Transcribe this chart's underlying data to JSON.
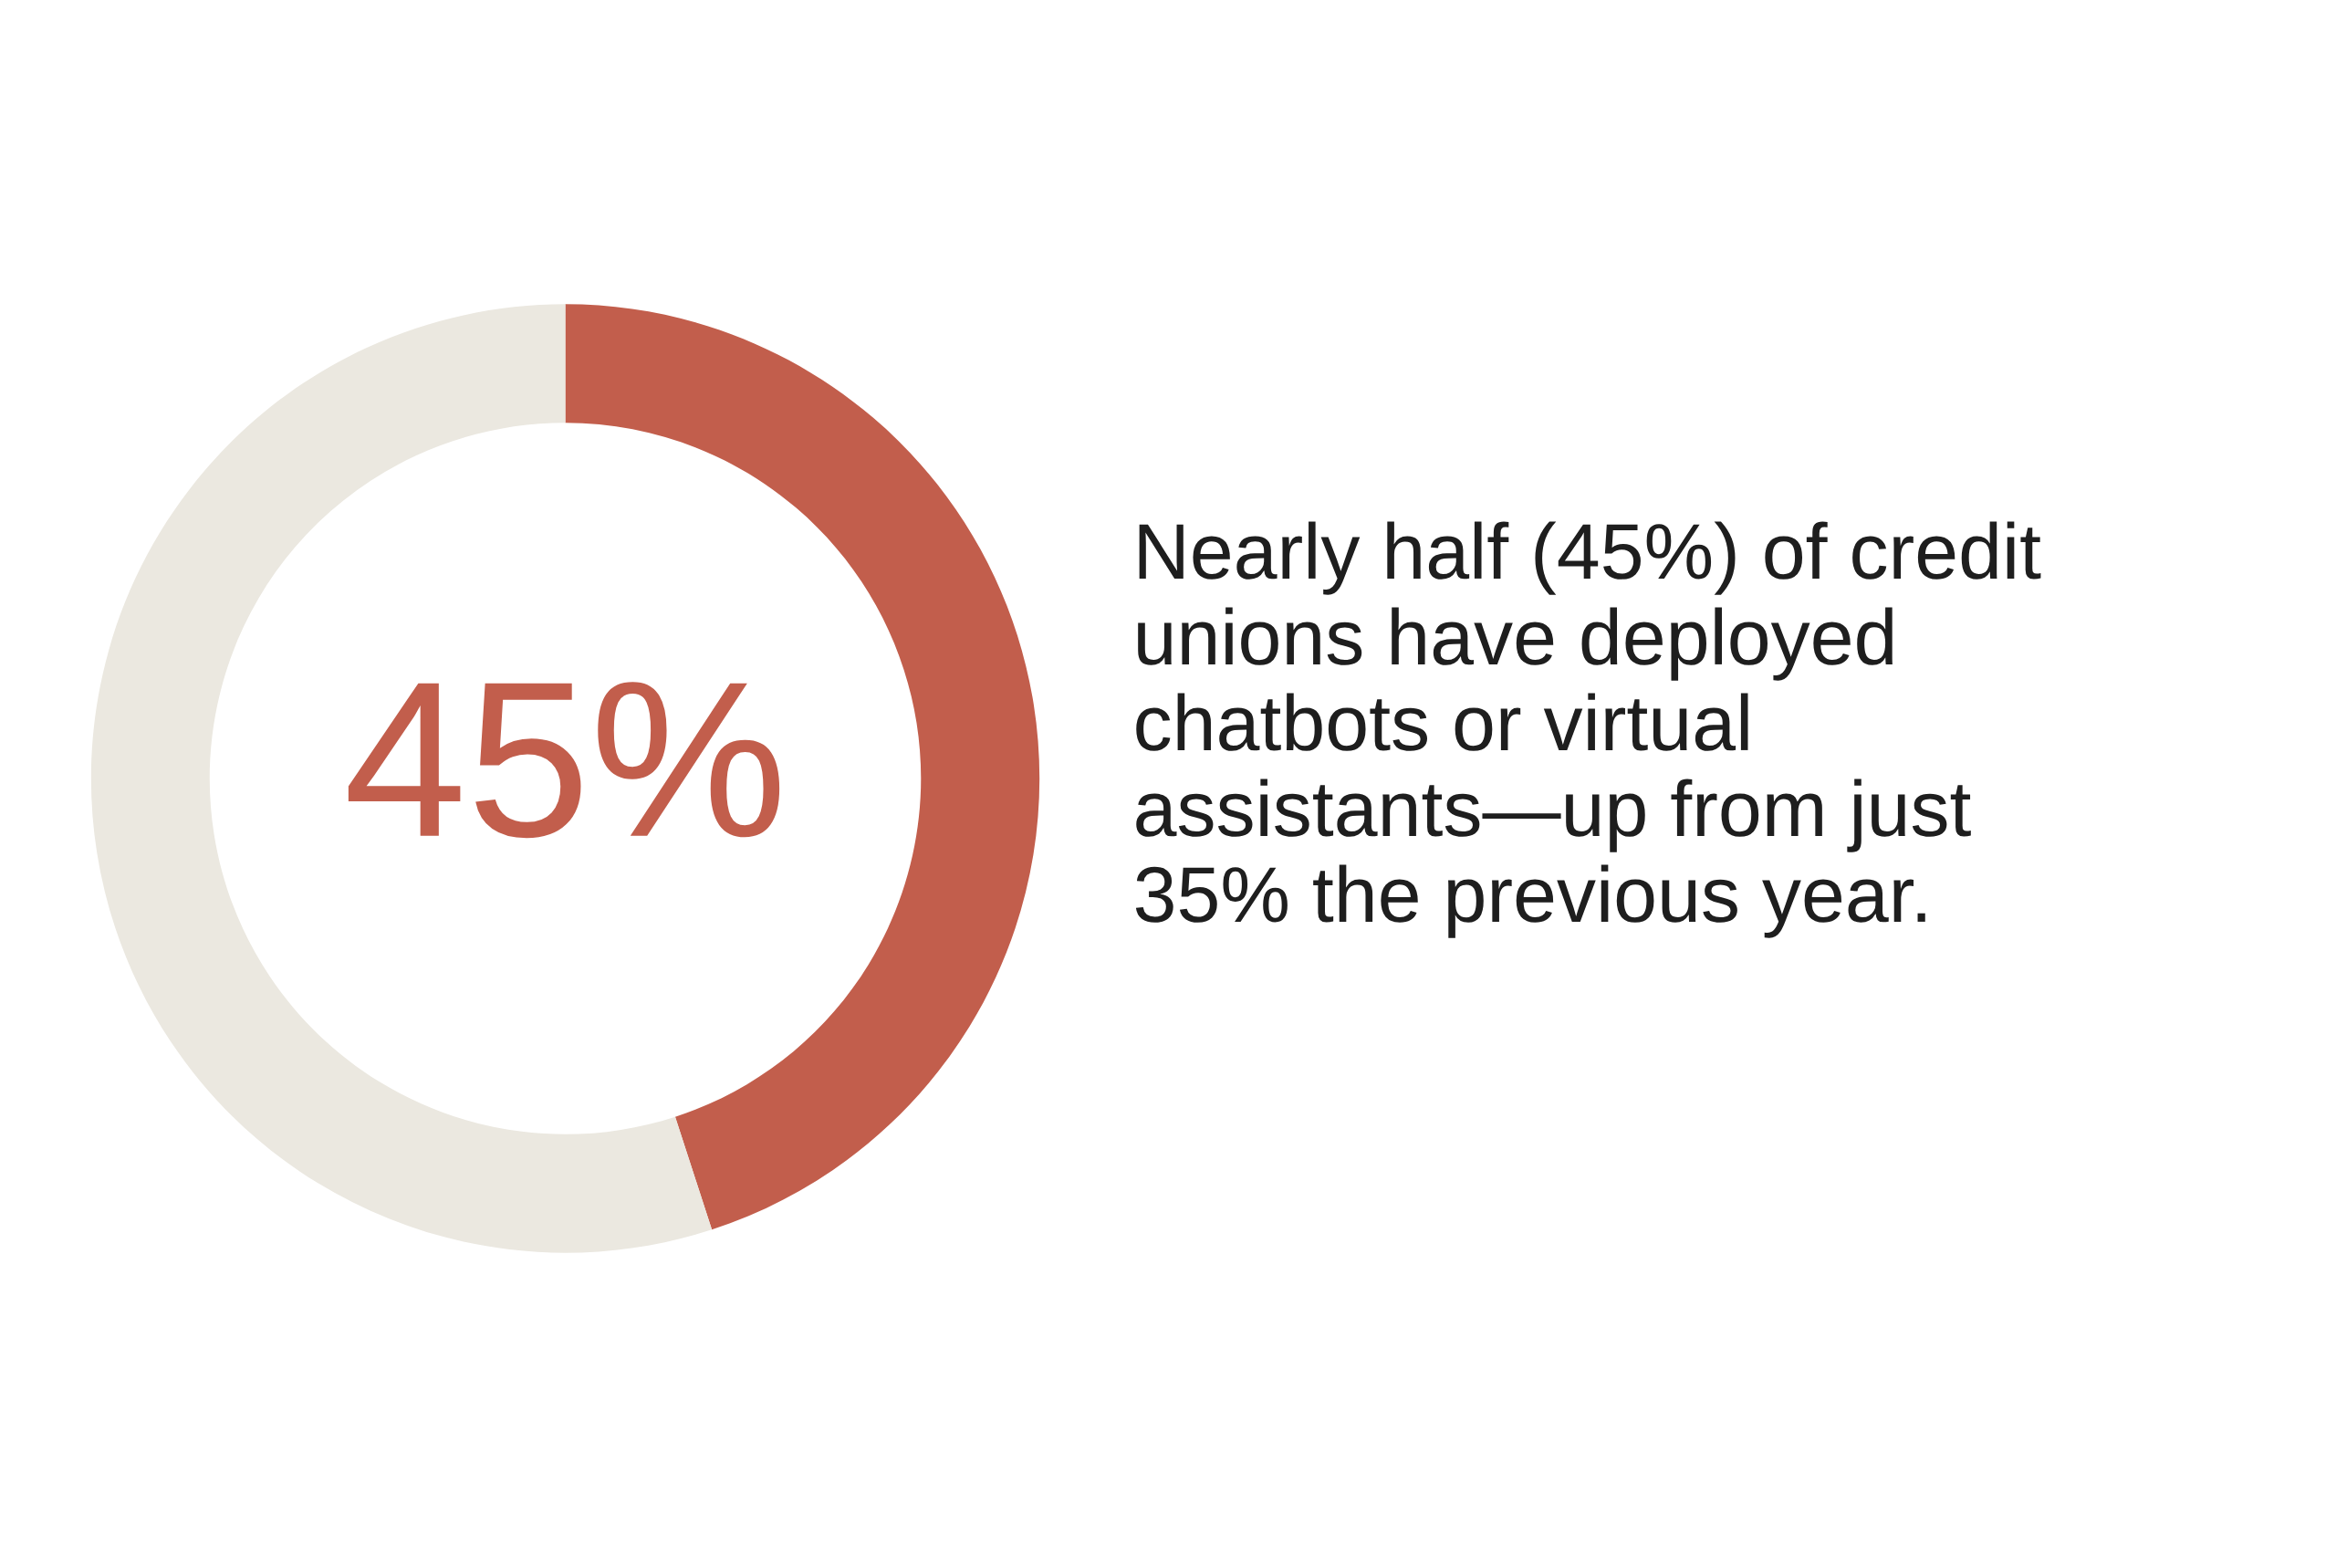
{
  "chart_data": {
    "type": "donut",
    "categories": [
      null,
      null
    ],
    "values": [
      45,
      55
    ],
    "colors": [
      "#c25e4c",
      "#ebe8e0"
    ],
    "value_labels": [
      "45%",
      null
    ],
    "annotations": [
      "Nearly half (45%) of credit\nunions have deployed\nchatbots or virtual\nassistants—up from just\n35% the previous year."
    ]
  }
}
